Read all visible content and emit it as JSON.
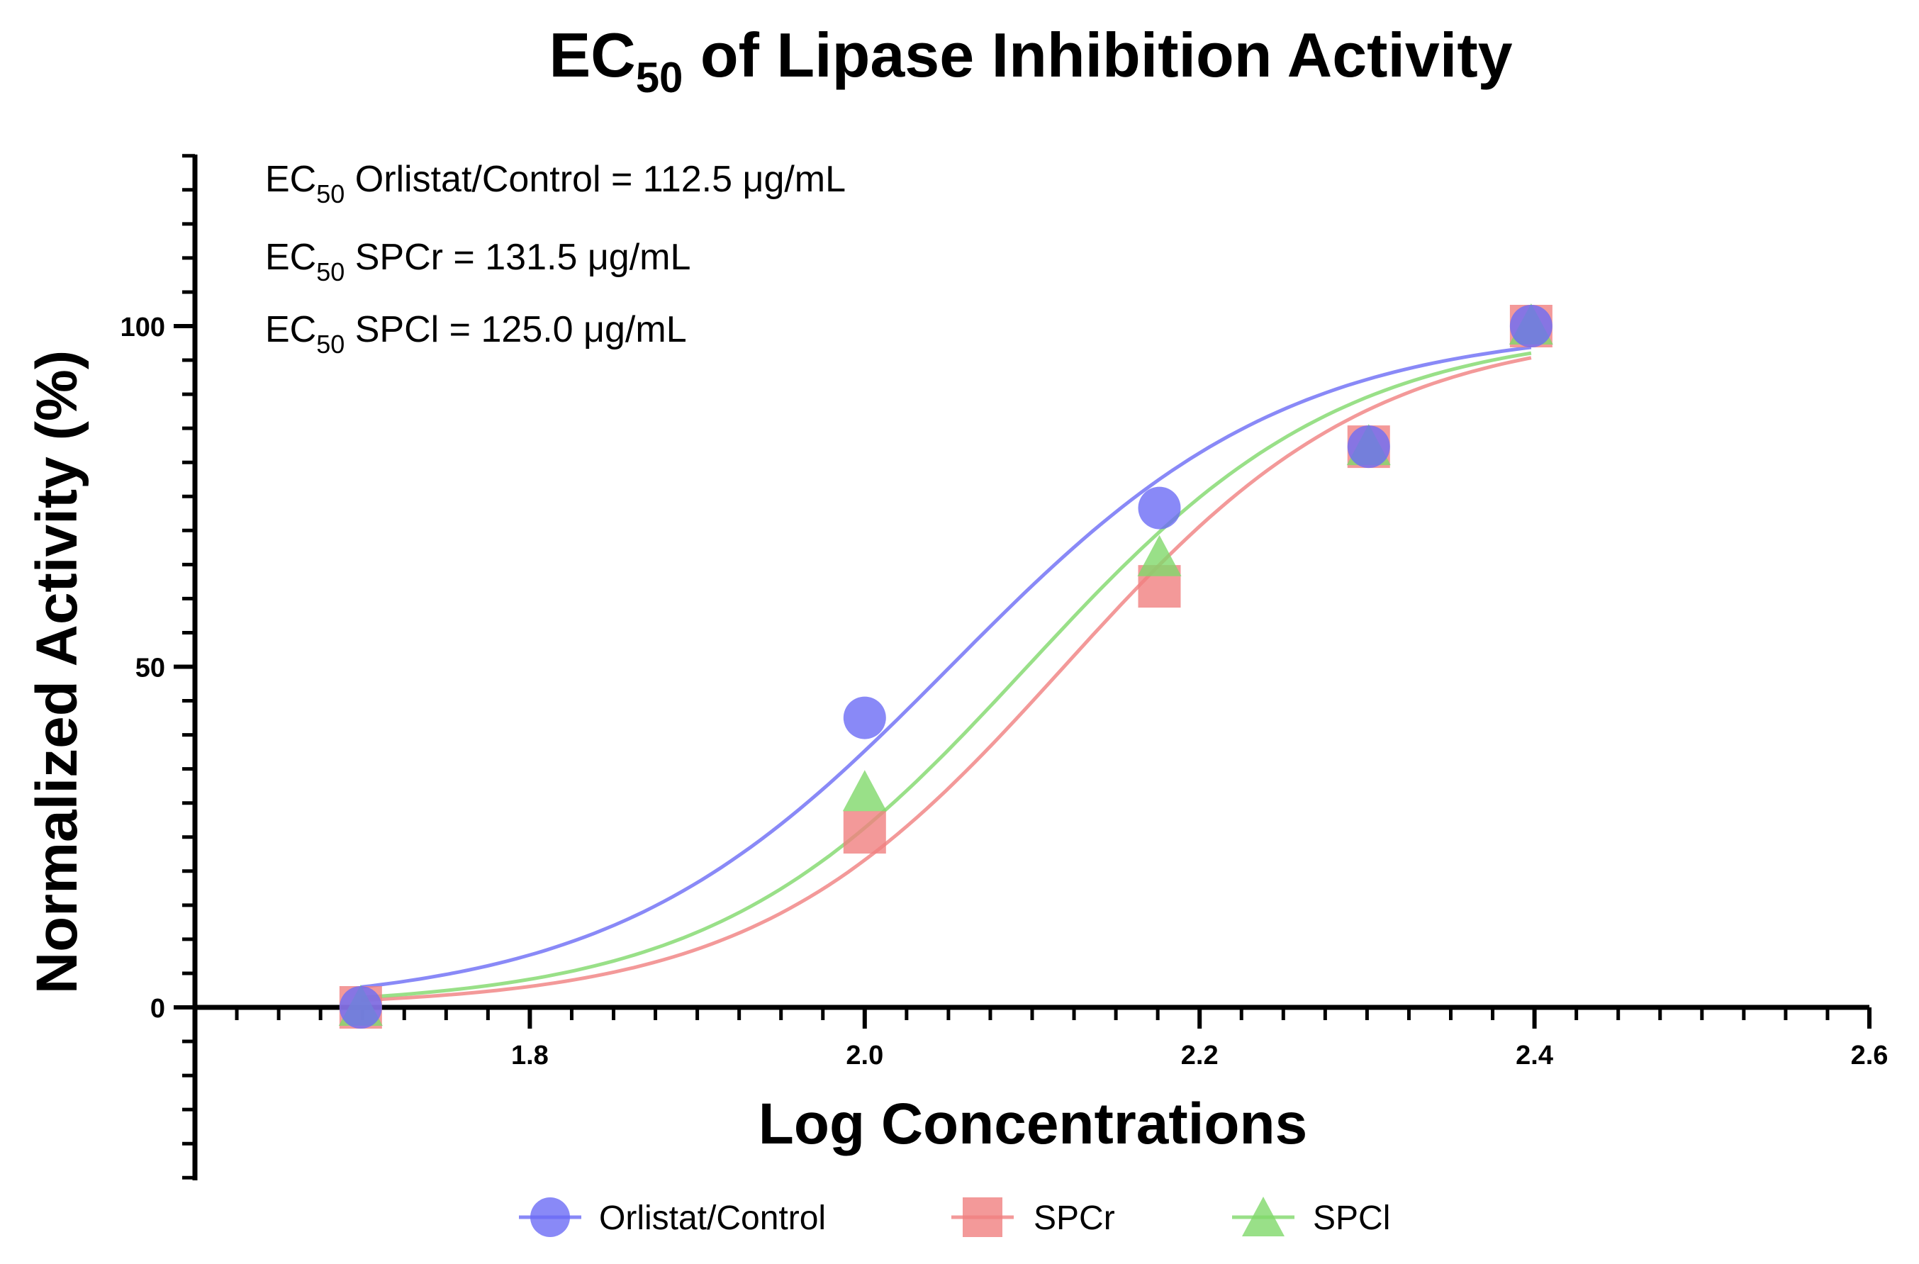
{
  "chart_data": {
    "type": "scatter",
    "title": {
      "main": "EC",
      "sub": "50",
      "rest": " of Lipase Inhibition Activity"
    },
    "xlabel": "Log Concentrations",
    "ylabel": "Normalized Activity (%)",
    "xlim": [
      1.6,
      2.6
    ],
    "ylim": [
      -25,
      125
    ],
    "x_ticks": [
      1.8,
      2.0,
      2.2,
      2.4,
      2.6
    ],
    "x_tick_labels": [
      "1.8",
      "2.0",
      "2.2",
      "2.4",
      "2.6"
    ],
    "y_ticks": [
      0,
      50,
      100
    ],
    "y_tick_labels": [
      "0",
      "50",
      "100"
    ],
    "annotations": [
      {
        "prefix": "EC",
        "sub": "50",
        "text": " Orlistat/Control = 112.5 μg/mL"
      },
      {
        "prefix": "EC",
        "sub": "50",
        "text": " SPCr = 131.5 μg/mL"
      },
      {
        "prefix": "EC",
        "sub": "50",
        "text": " SPCl = 125.0 μg/mL"
      }
    ],
    "series": [
      {
        "name": "Orlistat/Control",
        "marker": "circle",
        "color": "#6b6cf5",
        "x": [
          1.699,
          2.0,
          2.176,
          2.301,
          2.398
        ],
        "y": [
          0,
          42.5,
          73.3,
          82.3,
          100
        ],
        "fit": {
          "ec50_log": 2.051,
          "hill": 4.3,
          "bottom": 0,
          "top": 100,
          "x_range": [
            1.699,
            2.398
          ]
        }
      },
      {
        "name": "SPCr",
        "marker": "square",
        "color": "#f08080",
        "x": [
          1.699,
          2.0,
          2.176,
          2.301,
          2.398
        ],
        "y": [
          0,
          25.7,
          61.8,
          82.3,
          100
        ],
        "fit": {
          "ec50_log": 2.119,
          "hill": 4.7,
          "bottom": 0,
          "top": 100,
          "x_range": [
            1.699,
            2.398
          ]
        }
      },
      {
        "name": "SPCl",
        "marker": "triangle",
        "color": "#7fd86a",
        "x": [
          1.699,
          2.0,
          2.176,
          2.301,
          2.398
        ],
        "y": [
          0,
          31.5,
          66.0,
          82.3,
          100
        ],
        "fit": {
          "ec50_log": 2.097,
          "hill": 4.6,
          "bottom": 0,
          "top": 100,
          "x_range": [
            1.699,
            2.398
          ]
        }
      }
    ],
    "legend": {
      "position": "bottom"
    }
  }
}
